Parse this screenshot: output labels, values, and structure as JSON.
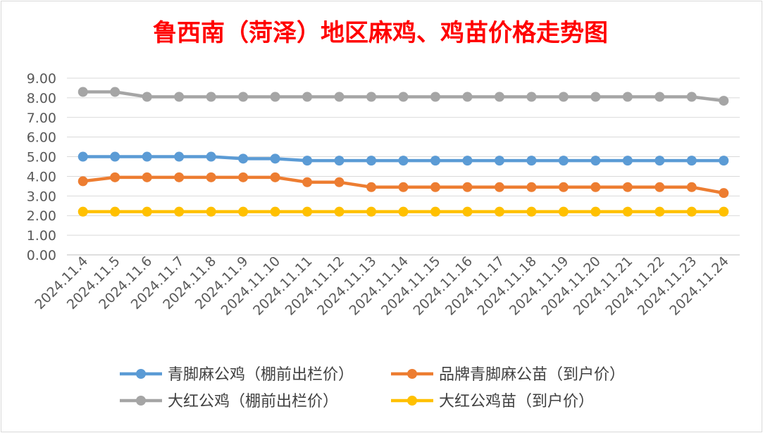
{
  "chart_data": {
    "type": "line",
    "title": "鲁西南（菏泽）地区麻鸡、鸡苗价格走势图",
    "title_color": "#ff0000",
    "categories": [
      "2024.11.4",
      "2024.11.5",
      "2024.11.6",
      "2024.11.7",
      "2024.11.8",
      "2024.11.9",
      "2024.11.10",
      "2024.11.11",
      "2024.11.12",
      "2024.11.13",
      "2024.11.14",
      "2024.11.15",
      "2024.11.16",
      "2024.11.17",
      "2024.11.18",
      "2024.11.19",
      "2024.11.20",
      "2024.11.21",
      "2024.11.22",
      "2024.11.23",
      "2024.11.24"
    ],
    "ylim": [
      0,
      9
    ],
    "yticks": [
      "0.00",
      "1.00",
      "2.00",
      "3.00",
      "4.00",
      "5.00",
      "6.00",
      "7.00",
      "8.00",
      "9.00"
    ],
    "grid": true,
    "legend_position": "bottom",
    "series": [
      {
        "name": "青脚麻公鸡（棚前出栏价）",
        "color": "#5b9bd5",
        "values": [
          5.0,
          5.0,
          5.0,
          5.0,
          5.0,
          4.9,
          4.9,
          4.8,
          4.8,
          4.8,
          4.8,
          4.8,
          4.8,
          4.8,
          4.8,
          4.8,
          4.8,
          4.8,
          4.8,
          4.8,
          4.8
        ]
      },
      {
        "name": "品牌青脚麻公苗（到户价）",
        "color": "#ed7d31",
        "values": [
          3.75,
          3.95,
          3.95,
          3.95,
          3.95,
          3.95,
          3.95,
          3.7,
          3.7,
          3.45,
          3.45,
          3.45,
          3.45,
          3.45,
          3.45,
          3.45,
          3.45,
          3.45,
          3.45,
          3.45,
          3.15
        ]
      },
      {
        "name": "大红公鸡（棚前出栏价）",
        "color": "#a5a5a5",
        "values": [
          8.3,
          8.3,
          8.05,
          8.05,
          8.05,
          8.05,
          8.05,
          8.05,
          8.05,
          8.05,
          8.05,
          8.05,
          8.05,
          8.05,
          8.05,
          8.05,
          8.05,
          8.05,
          8.05,
          8.05,
          7.85
        ]
      },
      {
        "name": "大红公鸡苗（到户价）",
        "color": "#ffc000",
        "values": [
          2.2,
          2.2,
          2.2,
          2.2,
          2.2,
          2.2,
          2.2,
          2.2,
          2.2,
          2.2,
          2.2,
          2.2,
          2.2,
          2.2,
          2.2,
          2.2,
          2.2,
          2.2,
          2.2,
          2.2,
          2.2
        ]
      }
    ],
    "legend_order": [
      0,
      1,
      2,
      3
    ]
  }
}
